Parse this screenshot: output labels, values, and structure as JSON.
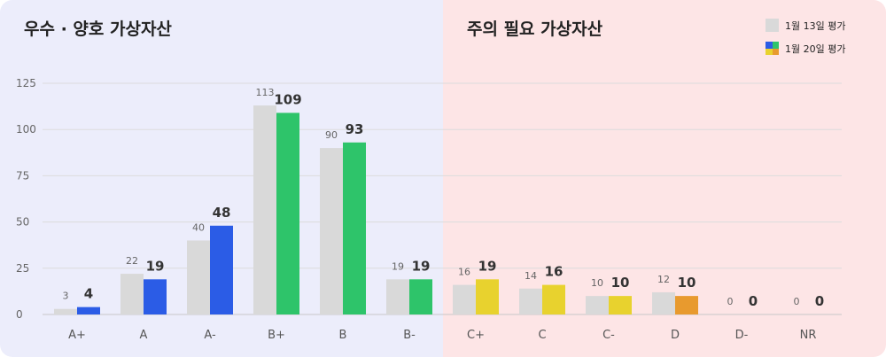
{
  "sections": {
    "good": {
      "title": "우수 · 양호 가상자산"
    },
    "caution": {
      "title": "주의 필요 가상자산"
    }
  },
  "legend": {
    "prev_label": "1월 13일 평가",
    "curr_label": "1월 20일 평가",
    "curr_swatch_colors": [
      "#2b5ce6",
      "#2ec46a",
      "#e8d22e",
      "#e89a2e"
    ]
  },
  "chart_data": {
    "type": "bar",
    "categories": [
      "A+",
      "A",
      "A-",
      "B+",
      "B",
      "B-",
      "C+",
      "C",
      "C-",
      "D",
      "D-",
      "NR"
    ],
    "series": [
      {
        "name": "1월 13일 평가",
        "values": [
          3,
          22,
          40,
          113,
          90,
          19,
          16,
          14,
          10,
          12,
          0,
          0
        ],
        "color": "#d9d9d9"
      },
      {
        "name": "1월 20일 평가",
        "values": [
          4,
          19,
          48,
          109,
          93,
          19,
          19,
          16,
          10,
          10,
          0,
          0
        ],
        "colors": [
          "#2b5ce6",
          "#2b5ce6",
          "#2b5ce6",
          "#2ec46a",
          "#2ec46a",
          "#2ec46a",
          "#e8d22e",
          "#e8d22e",
          "#e8d22e",
          "#e89a2e",
          "#e89a2e",
          "#e89a2e"
        ]
      }
    ],
    "yticks": [
      0,
      25,
      50,
      75,
      100,
      125
    ],
    "ylim": [
      0,
      125
    ],
    "grid": true,
    "legend_position": "top-right"
  }
}
